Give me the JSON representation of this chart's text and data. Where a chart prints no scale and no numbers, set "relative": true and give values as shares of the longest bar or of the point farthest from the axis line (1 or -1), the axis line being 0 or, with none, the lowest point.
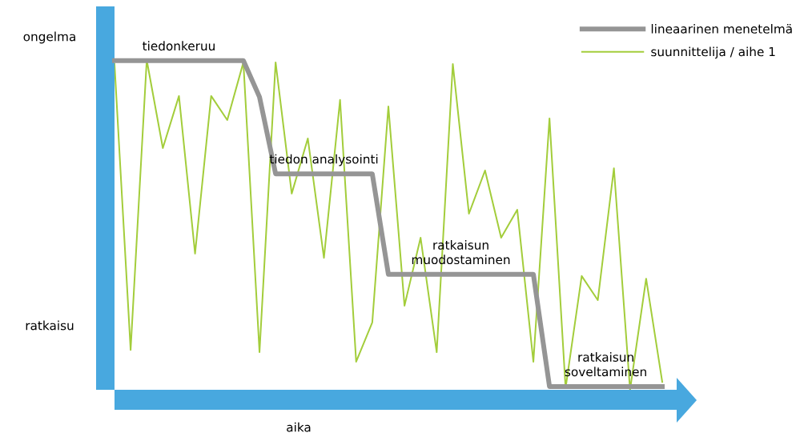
{
  "chart_data": {
    "type": "line",
    "relative": true,
    "xlabel": "aika",
    "legend": "top right",
    "marker": "none",
    "line_style": "solid",
    "categories": [
      null,
      null,
      null,
      null,
      null,
      null,
      null,
      null,
      null,
      null,
      null,
      null,
      null,
      null,
      null,
      null,
      null,
      null,
      null,
      null,
      null,
      null,
      null,
      null,
      null,
      null,
      null,
      null,
      null,
      null,
      null,
      null,
      null,
      null,
      null
    ],
    "series": [
      {
        "name": "lineaarinen menetelmä",
        "color": "#959595",
        "values": [
          0.998,
          0.998,
          0.998,
          0.998,
          0.998,
          0.998,
          0.998,
          0.998,
          0.998,
          0.888,
          0.655,
          0.655,
          0.655,
          0.655,
          0.655,
          0.655,
          0.655,
          0.35,
          0.35,
          0.35,
          0.35,
          0.35,
          0.35,
          0.35,
          0.35,
          0.35,
          0.35,
          0.01,
          0.01,
          0.01,
          0.01,
          0.01,
          0.01,
          0.01,
          0.01
        ]
      },
      {
        "name": "suunnittelija / aihe 1",
        "color": "#a3cd3b",
        "values": [
          0.988,
          0.121,
          1.0,
          0.733,
          0.891,
          0.413,
          0.891,
          0.818,
          0.993,
          0.114,
          0.993,
          0.595,
          0.762,
          0.4,
          0.879,
          0.085,
          0.204,
          0.859,
          0.255,
          0.461,
          0.114,
          0.988,
          0.534,
          0.665,
          0.461,
          0.546,
          0.085,
          0.823,
          0.005,
          0.345,
          0.272,
          0.672,
          0.0,
          0.337,
          0.024
        ]
      }
    ],
    "annotations": [
      "ongelma",
      "ratkaisu",
      "tiedonkeruu",
      "tiedon analysointi",
      "ratkaisun\nmuodostaminen",
      "ratkaisun\nsoveltaminen"
    ]
  }
}
